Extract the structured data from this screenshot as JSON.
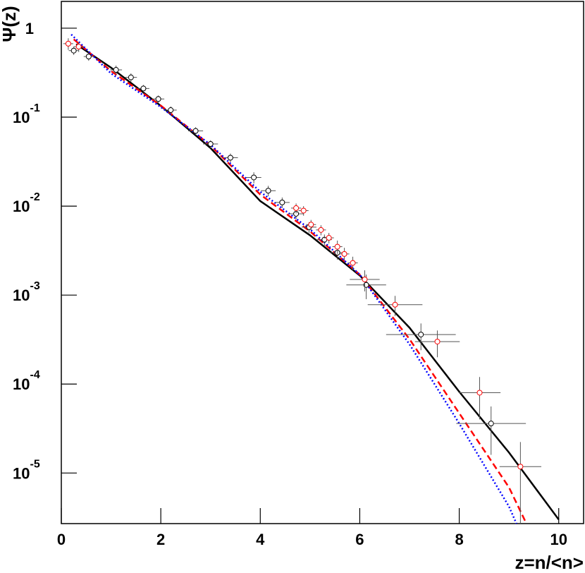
{
  "chart_data": {
    "type": "errorbar",
    "y_label": "Ψ(z)",
    "x_label": "z=n/<n>",
    "log_y": true,
    "xlim": [
      0,
      10.5
    ],
    "ylim": [
      2.7e-06,
      2
    ],
    "xticks": [
      0,
      2,
      4,
      6,
      8,
      10
    ],
    "yticks": [
      {
        "value": 1,
        "label": "1"
      },
      {
        "value": 0.1,
        "label": "10",
        "exponent": "-1"
      },
      {
        "value": 0.01,
        "label": "10",
        "exponent": "-2"
      },
      {
        "value": 0.001,
        "label": "10",
        "exponent": "-3"
      },
      {
        "value": 0.0001,
        "label": "10",
        "exponent": "-4"
      },
      {
        "value": 1e-05,
        "label": "10",
        "exponent": "-5"
      }
    ],
    "curves": [
      {
        "color": "#000000",
        "style": "solid",
        "x": [
          0.3,
          1,
          2,
          3,
          4,
          5,
          6,
          7,
          8,
          9,
          10
        ],
        "values": [
          0.66,
          0.36,
          0.134,
          0.045,
          0.0114,
          0.0047,
          0.00166,
          0.00043,
          8.2e-05,
          1.7e-05,
          3e-06
        ]
      },
      {
        "color": "#ff0000",
        "style": "dashed",
        "x": [
          0.25,
          1,
          2,
          3,
          4,
          5,
          6,
          7,
          8,
          9,
          9.35
        ],
        "values": [
          0.75,
          0.33,
          0.135,
          0.048,
          0.0135,
          0.0052,
          0.0017,
          0.00032,
          4.7e-05,
          6.9e-06,
          2.7e-06
        ]
      },
      {
        "color": "#0000ff",
        "style": "dotted",
        "x": [
          0.2,
          1,
          2,
          3,
          4,
          5,
          6,
          7,
          8,
          9,
          9.15
        ],
        "values": [
          0.85,
          0.31,
          0.13,
          0.049,
          0.0145,
          0.0055,
          0.0017,
          0.00028,
          3.6e-05,
          4.2e-06,
          2.7e-06
        ]
      }
    ],
    "points": [
      {
        "color": "#000000",
        "x": [
          0.25,
          0.55,
          1.1,
          1.4,
          1.65,
          1.95,
          2.2,
          2.7,
          3.0,
          3.4,
          3.87,
          4.16,
          4.44,
          4.72,
          4.98,
          5.29,
          5.55,
          6.13,
          7.23,
          8.64
        ],
        "xerr": [
          0.1,
          0.1,
          0.12,
          0.12,
          0.12,
          0.12,
          0.12,
          0.15,
          0.15,
          0.15,
          0.15,
          0.15,
          0.15,
          0.15,
          0.15,
          0.15,
          0.15,
          0.4,
          0.7,
          0.7
        ],
        "values": [
          0.56,
          0.48,
          0.34,
          0.28,
          0.21,
          0.16,
          0.12,
          0.07,
          0.05,
          0.035,
          0.021,
          0.0149,
          0.011,
          0.0082,
          0.0058,
          0.0042,
          0.003,
          0.0013,
          0.00036,
          3.6e-05
        ],
        "yerr": [
          0.06,
          0.05,
          0.04,
          0.03,
          0.02,
          0.015,
          0.012,
          0.007,
          0.005,
          0.004,
          0.003,
          0.002,
          0.0015,
          0.0011,
          0.0008,
          0.0006,
          0.0005,
          0.0004,
          0.00012,
          2e-05
        ]
      },
      {
        "color": "#ff0000",
        "x": [
          0.14,
          0.35,
          4.72,
          4.87,
          5.02,
          5.22,
          5.38,
          5.55,
          5.69,
          5.86,
          6.1,
          6.71,
          7.56,
          8.41,
          9.23
        ],
        "xerr": [
          0.1,
          0.1,
          0.1,
          0.1,
          0.1,
          0.1,
          0.1,
          0.1,
          0.1,
          0.1,
          0.3,
          0.55,
          0.45,
          0.42,
          0.42
        ],
        "values": [
          0.67,
          0.62,
          0.0095,
          0.0089,
          0.0062,
          0.0054,
          0.0044,
          0.0035,
          0.0029,
          0.0023,
          0.0015,
          0.00078,
          0.0003,
          8e-05,
          1.18e-05
        ],
        "yerr": [
          0.1,
          0.08,
          0.0012,
          0.0011,
          0.0008,
          0.0007,
          0.0006,
          0.0006,
          0.0005,
          0.0004,
          0.0004,
          0.0002,
          0.0001,
          4e-05,
          1.05e-05
        ]
      }
    ]
  }
}
